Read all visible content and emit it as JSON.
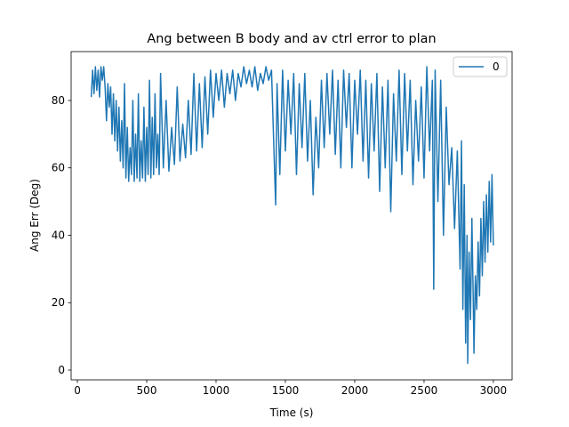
{
  "chart_data": {
    "type": "line",
    "title": "Ang between B body and av ctrl error to plan",
    "xlabel": "Time (s)",
    "ylabel": "Ang Err (Deg)",
    "xlim": [
      -45,
      3135
    ],
    "ylim": [
      -2.9,
      94.5
    ],
    "xticks": [
      0,
      500,
      1000,
      1500,
      2000,
      2500,
      3000
    ],
    "yticks": [
      0,
      20,
      40,
      60,
      80
    ],
    "legend": "upper right",
    "x": [
      100,
      110,
      120,
      130,
      140,
      150,
      160,
      170,
      180,
      190,
      200,
      210,
      220,
      230,
      240,
      250,
      260,
      270,
      280,
      290,
      300,
      310,
      320,
      330,
      340,
      350,
      360,
      370,
      380,
      390,
      400,
      410,
      420,
      430,
      440,
      450,
      460,
      470,
      480,
      490,
      500,
      510,
      520,
      530,
      540,
      550,
      560,
      570,
      580,
      590,
      600,
      620,
      640,
      660,
      680,
      700,
      720,
      740,
      760,
      780,
      800,
      820,
      840,
      860,
      880,
      900,
      920,
      940,
      960,
      980,
      1000,
      1020,
      1040,
      1060,
      1080,
      1100,
      1120,
      1140,
      1160,
      1180,
      1200,
      1220,
      1240,
      1260,
      1280,
      1300,
      1320,
      1340,
      1360,
      1380,
      1400,
      1420,
      1430,
      1440,
      1460,
      1480,
      1500,
      1520,
      1540,
      1560,
      1580,
      1600,
      1620,
      1640,
      1660,
      1680,
      1700,
      1720,
      1740,
      1760,
      1780,
      1800,
      1820,
      1840,
      1860,
      1880,
      1900,
      1920,
      1940,
      1960,
      1980,
      2000,
      2020,
      2040,
      2060,
      2080,
      2100,
      2120,
      2140,
      2160,
      2180,
      2200,
      2220,
      2240,
      2260,
      2280,
      2300,
      2320,
      2340,
      2360,
      2380,
      2400,
      2420,
      2440,
      2460,
      2480,
      2500,
      2520,
      2540,
      2560,
      2570,
      2580,
      2600,
      2620,
      2640,
      2660,
      2680,
      2700,
      2720,
      2740,
      2760,
      2770,
      2780,
      2790,
      2800,
      2810,
      2815,
      2825,
      2835,
      2845,
      2855,
      2860,
      2870,
      2880,
      2890,
      2900,
      2910,
      2920,
      2930,
      2940,
      2950,
      2960,
      2970,
      2980,
      2990,
      3000
    ],
    "series": [
      {
        "name": "0",
        "color": "#1f77b4",
        "values": [
          81,
          89,
          82,
          90,
          83,
          89,
          81,
          90,
          86,
          90,
          84,
          74,
          85,
          78,
          84,
          70,
          82,
          68,
          80,
          65,
          78,
          62,
          74,
          60,
          85,
          57,
          72,
          56,
          66,
          58,
          80,
          56,
          70,
          57,
          82,
          56,
          68,
          57,
          78,
          56,
          72,
          58,
          86,
          57,
          75,
          58,
          82,
          60,
          70,
          58,
          88,
          60,
          80,
          59,
          72,
          61,
          84,
          62,
          73,
          63,
          80,
          64,
          88,
          65,
          85,
          66,
          87,
          70,
          89,
          75,
          88,
          80,
          89,
          78,
          88,
          82,
          89,
          80,
          88,
          84,
          90,
          85,
          89,
          84,
          90,
          83,
          88,
          85,
          90,
          86,
          89,
          62,
          49,
          85,
          58,
          89,
          65,
          86,
          70,
          88,
          58,
          85,
          66,
          88,
          62,
          80,
          52,
          75,
          60,
          86,
          66,
          88,
          70,
          89,
          64,
          86,
          60,
          89,
          72,
          88,
          60,
          86,
          70,
          89,
          62,
          86,
          57,
          85,
          65,
          88,
          53,
          84,
          60,
          86,
          47,
          82,
          62,
          89,
          58,
          88,
          65,
          86,
          55,
          80,
          62,
          84,
          57,
          90,
          65,
          86,
          24,
          89,
          50,
          86,
          40,
          78,
          55,
          66,
          42,
          65,
          30,
          68,
          18,
          55,
          8,
          40,
          2,
          35,
          15,
          45,
          20,
          5,
          28,
          18,
          38,
          22,
          45,
          28,
          50,
          32,
          52,
          35,
          56,
          38,
          58,
          37
        ]
      }
    ]
  }
}
